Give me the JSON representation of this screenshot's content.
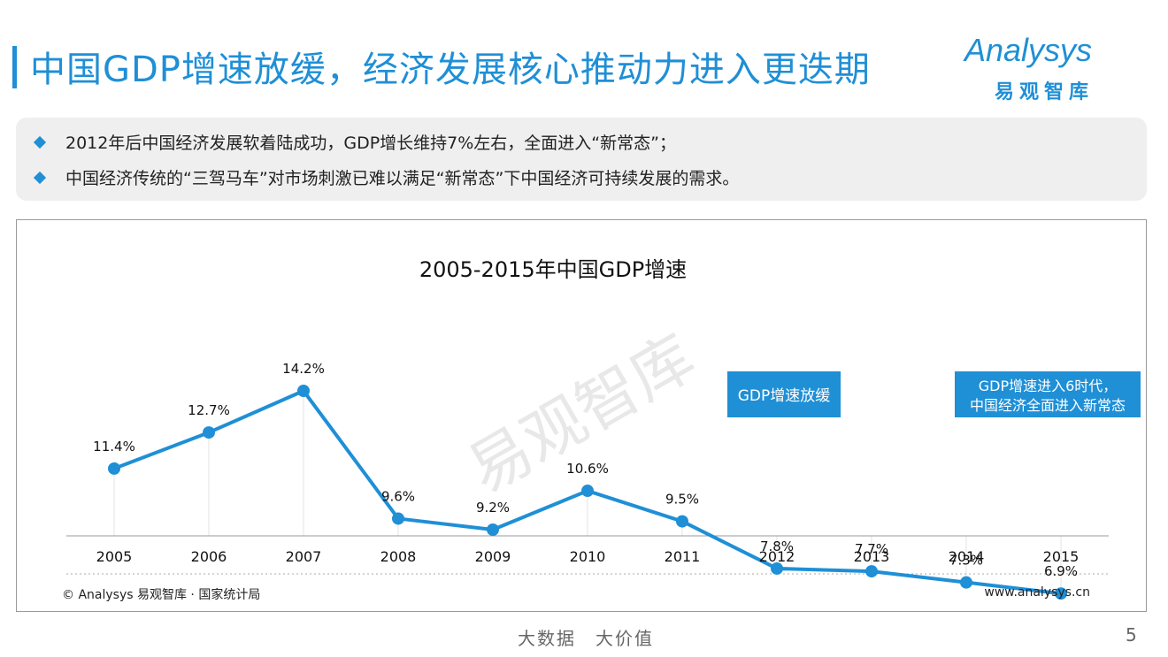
{
  "header": {
    "title": "中国GDP增速放缓，经济发展核心推动力进入更迭期"
  },
  "logo": {
    "word": "Analysys",
    "cn": "易观智库"
  },
  "summary": {
    "bullets": [
      "2012年后中国经济发展软着陆成功，GDP增长维持7%左右，全面进入“新常态”；",
      "中国经济传统的“三驾马车”对市场刺激已难以满足“新常态”下中国经济可持续发展的需求。"
    ]
  },
  "chart_data": {
    "type": "line",
    "title": "2005-2015年中国GDP增速",
    "categories": [
      "2005",
      "2006",
      "2007",
      "2008",
      "2009",
      "2010",
      "2011",
      "2012",
      "2013",
      "2014",
      "2015"
    ],
    "values": [
      11.4,
      12.7,
      14.2,
      9.6,
      9.2,
      10.6,
      9.5,
      7.8,
      7.7,
      7.3,
      6.9
    ],
    "labels": [
      "11.4%",
      "12.7%",
      "14.2%",
      "9.6%",
      "9.2%",
      "10.6%",
      "9.5%",
      "7.8%",
      "7.7%",
      "7.3%",
      "6.9%"
    ],
    "unit": "%",
    "ylim": [
      0,
      16
    ],
    "color": "#1f8fd6",
    "annotations": [
      {
        "text": "GDP增速放缓",
        "near": "2012"
      },
      {
        "text": "GDP增速进入6时代，",
        "text2": "中国经济全面进入新常态",
        "near": "2015"
      }
    ],
    "watermark": "易观智库"
  },
  "source": "© Analysys 易观智库 · 国家统计局",
  "url": "www.analysys.cn",
  "footer": "大数据　大价值",
  "page_number": "5"
}
